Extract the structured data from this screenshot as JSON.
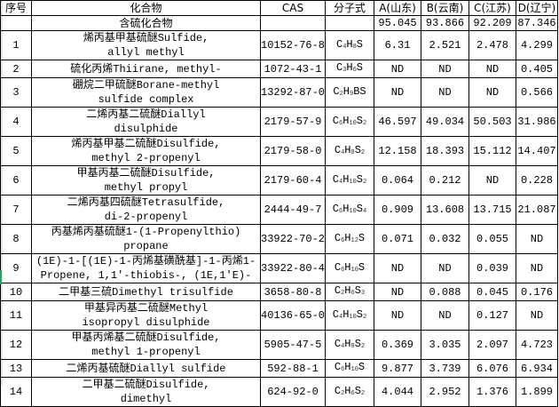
{
  "headers": [
    "序号",
    "化合物",
    "CAS",
    "分子式",
    "A(山东)",
    "B(云南)",
    "C(江苏)",
    "D(辽宁)"
  ],
  "group": {
    "label": "含硫化合物",
    "totals": [
      "95.045",
      "93.866",
      "92.209",
      "87.346"
    ]
  },
  "rows": [
    {
      "no": "1",
      "name": [
        "烯丙基甲基硫醚Sulfide,",
        "allyl methyl"
      ],
      "cas": "10152-76-8",
      "formula": "C4H8S",
      "values": [
        "6.31",
        "2.521",
        "2.478",
        "4.299"
      ]
    },
    {
      "no": "2",
      "name": [
        "硫化丙烯Thiirane, methyl-"
      ],
      "cas": "1072-43-1",
      "formula": "C3H6S",
      "values": [
        "ND",
        "ND",
        "ND",
        "0.405"
      ]
    },
    {
      "no": "3",
      "name": [
        "硼烷二甲硫醚Borane-methyl",
        "sulfide complex"
      ],
      "cas": "13292-87-0",
      "formula": "C2H9BS",
      "values": [
        "ND",
        "ND",
        "ND",
        "0.566"
      ]
    },
    {
      "no": "4",
      "name": [
        "二烯丙基二硫醚Diallyl",
        "disulphide"
      ],
      "cas": "2179-57-9",
      "formula": "C6H10S2",
      "values": [
        "46.597",
        "49.034",
        "50.503",
        "31.986"
      ]
    },
    {
      "no": "5",
      "name": [
        "烯丙基甲基二硫醚Disulfide,",
        "methyl 2-propenyl"
      ],
      "cas": "2179-58-0",
      "formula": "C4H8S2",
      "values": [
        "12.158",
        "18.393",
        "15.112",
        "14.407"
      ]
    },
    {
      "no": "6",
      "name": [
        "甲基丙基二硫醚Disulfide,",
        "methyl propyl"
      ],
      "cas": "2179-60-4",
      "formula": "C4H10S2",
      "values": [
        "0.064",
        "0.212",
        "ND",
        "0.228"
      ]
    },
    {
      "no": "7",
      "name": [
        "二烯丙基四硫醚Tetrasulfide,",
        "di-2-propenyl"
      ],
      "cas": "2444-49-7",
      "formula": "C6H10S4",
      "values": [
        "0.909",
        "13.608",
        "13.715",
        "21.087"
      ]
    },
    {
      "no": "8",
      "name": [
        "丙基烯丙基硫醚1-(1-Propenylthio)",
        "propane"
      ],
      "cas": "33922-70-2",
      "formula": "C6H12S",
      "values": [
        "0.071",
        "0.032",
        "0.055",
        "ND"
      ]
    },
    {
      "no": "9",
      "name": [
        "(1E)-1-[(1E)-1-丙烯基磺酰基]-1-丙烯1-",
        "Propene, 1,1′-thiobis-, (1E,1′E)-"
      ],
      "cas": "33922-80-4",
      "formula": "C6H10S",
      "values": [
        "ND",
        "ND",
        "0.039",
        "ND"
      ]
    },
    {
      "no": "10",
      "name": [
        "二甲基三硫Dimethyl trisulfide"
      ],
      "cas": "3658-80-8",
      "formula": "C2H6S3",
      "values": [
        "ND",
        "0.088",
        "0.045",
        "0.176"
      ]
    },
    {
      "no": "11",
      "name": [
        "甲基异丙基二硫醚Methyl",
        "isopropyl disulphide"
      ],
      "cas": "40136-65-0",
      "formula": "C4H10S2",
      "values": [
        "ND",
        "ND",
        "0.127",
        "ND"
      ]
    },
    {
      "no": "12",
      "name": [
        "甲基丙烯基二硫醚Disulfide,",
        "methyl 1-propenyl"
      ],
      "cas": "5905-47-5",
      "formula": "C4H8S2",
      "values": [
        "0.369",
        "3.035",
        "2.097",
        "4.723"
      ]
    },
    {
      "no": "13",
      "name": [
        "二烯丙基硫醚Diallyl sulfide"
      ],
      "cas": "592-88-1",
      "formula": "C6H10S",
      "values": [
        "9.877",
        "3.739",
        "6.076",
        "6.934"
      ]
    },
    {
      "no": "14",
      "name": [
        "二甲基二硫醚Disulfide,",
        "dimethyl"
      ],
      "cas": "624-92-0",
      "formula": "C2H6S2",
      "values": [
        "4.044",
        "2.952",
        "1.376",
        "1.899"
      ]
    }
  ]
}
